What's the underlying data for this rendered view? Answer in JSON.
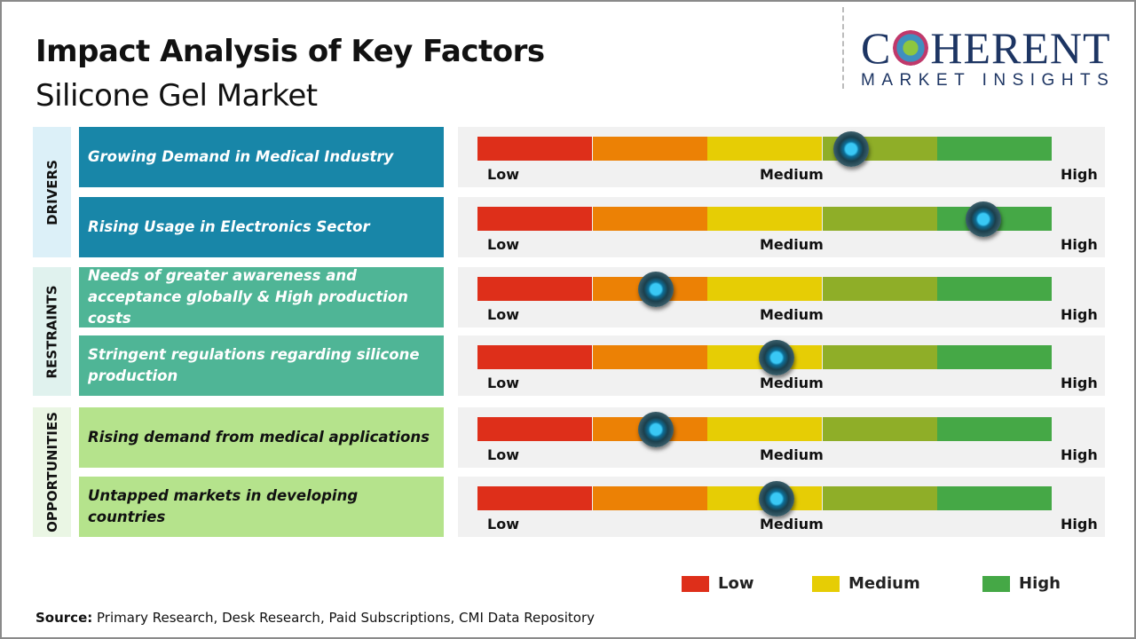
{
  "header": {
    "title": "Impact Analysis of Key Factors",
    "subtitle": "Silicone Gel Market"
  },
  "logo": {
    "top_left": "C",
    "top_right": "HERENT",
    "bottom": "MARKET INSIGHTS"
  },
  "scale": {
    "low": "Low",
    "medium": "Medium",
    "high": "High"
  },
  "colors": {
    "segments": [
      "#de2f1a",
      "#ec8105",
      "#e6cd05",
      "#8fae28",
      "#45a846"
    ],
    "drivers": "#1886a8",
    "restraints": "#4fb596",
    "opportunities": "#b5e38c"
  },
  "chart_data": {
    "type": "gauge",
    "title": "Impact Analysis of Key Factors - Silicone Gel Market",
    "scale_range": [
      0,
      1
    ],
    "scale_labels": [
      "Low",
      "Medium",
      "High"
    ],
    "categories": [
      {
        "name": "DRIVERS",
        "key": "drivers",
        "factors": [
          {
            "label": "Growing Demand in Medical Industry",
            "impact": 0.65
          },
          {
            "label": "Rising Usage in Electronics Sector",
            "impact": 0.88
          }
        ]
      },
      {
        "name": "RESTRAINTS",
        "key": "restraints",
        "factors": [
          {
            "label": "Needs of greater awareness and acceptance globally & High production costs",
            "impact": 0.31
          },
          {
            "label": "Stringent regulations regarding silicone production",
            "impact": 0.52
          }
        ]
      },
      {
        "name": "OPPORTUNITIES",
        "key": "opportunities",
        "factors": [
          {
            "label": "Rising demand from medical applications",
            "impact": 0.31
          },
          {
            "label": "Untapped markets in developing countries",
            "impact": 0.52
          }
        ]
      }
    ]
  },
  "legend": [
    {
      "label": "Low",
      "color": "#de2f1a"
    },
    {
      "label": "Medium",
      "color": "#e6cd05"
    },
    {
      "label": "High",
      "color": "#45a846"
    }
  ],
  "source": {
    "label": "Source:",
    "text": " Primary Research, Desk Research, Paid Subscriptions, CMI Data Repository"
  }
}
